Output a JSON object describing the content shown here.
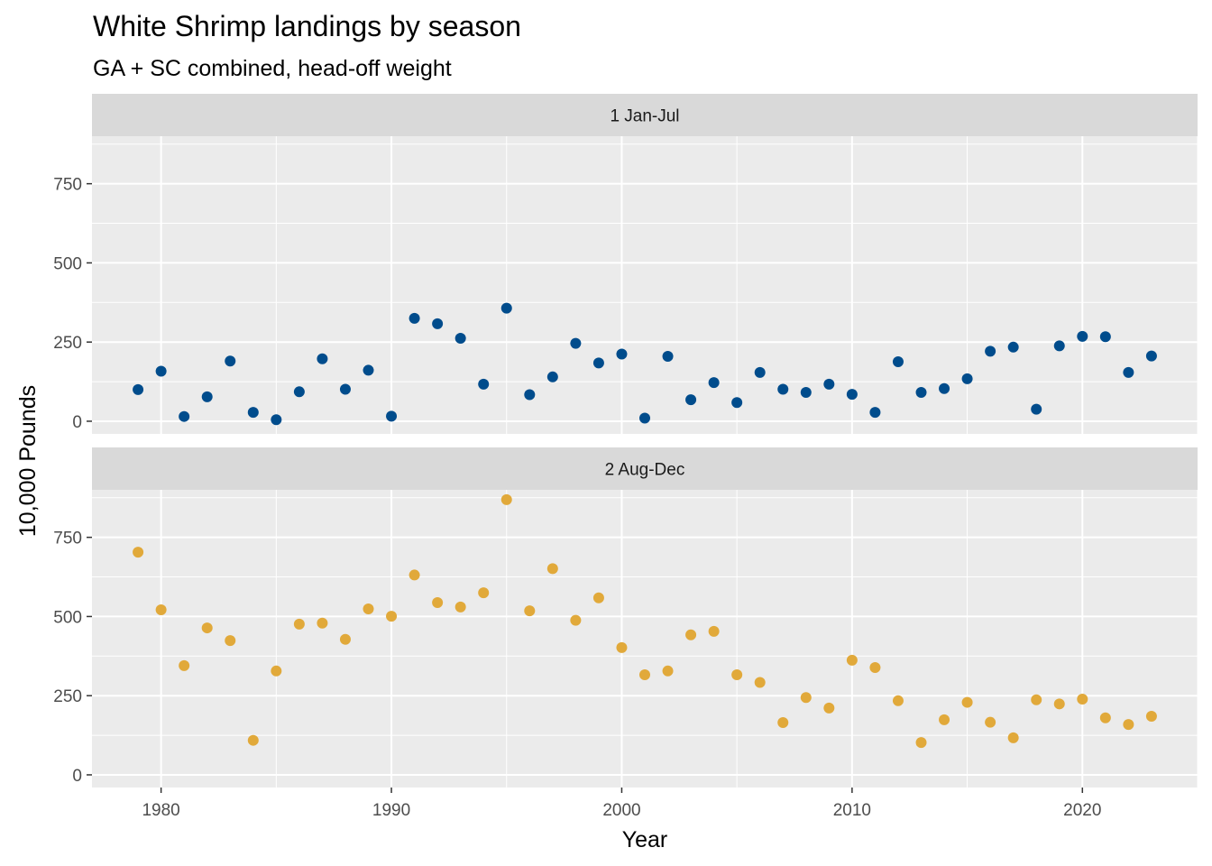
{
  "chart_data": {
    "type": "scatter",
    "title": "White Shrimp landings by season",
    "subtitle": "GA + SC combined, head-off weight",
    "xlabel": "Year",
    "ylabel": "10,000 Pounds",
    "xlim": [
      1977,
      2025
    ],
    "ylim": [
      -40,
      900
    ],
    "x_ticks": [
      1980,
      1990,
      2000,
      2010,
      2020
    ],
    "y_ticks": [
      0,
      250,
      500,
      750
    ],
    "grid": true,
    "legend": "none",
    "facets": [
      {
        "name": "1 Jan-Jul",
        "color": "#004c8c",
        "points": [
          {
            "x": 1979,
            "y": 100
          },
          {
            "x": 1980,
            "y": 158
          },
          {
            "x": 1981,
            "y": 15
          },
          {
            "x": 1982,
            "y": 77
          },
          {
            "x": 1983,
            "y": 190
          },
          {
            "x": 1984,
            "y": 28
          },
          {
            "x": 1985,
            "y": 5
          },
          {
            "x": 1986,
            "y": 93
          },
          {
            "x": 1987,
            "y": 197
          },
          {
            "x": 1988,
            "y": 101
          },
          {
            "x": 1989,
            "y": 161
          },
          {
            "x": 1990,
            "y": 16
          },
          {
            "x": 1991,
            "y": 325
          },
          {
            "x": 1992,
            "y": 308
          },
          {
            "x": 1993,
            "y": 262
          },
          {
            "x": 1994,
            "y": 117
          },
          {
            "x": 1995,
            "y": 357
          },
          {
            "x": 1996,
            "y": 84
          },
          {
            "x": 1997,
            "y": 140
          },
          {
            "x": 1998,
            "y": 246
          },
          {
            "x": 1999,
            "y": 184
          },
          {
            "x": 2000,
            "y": 212
          },
          {
            "x": 2001,
            "y": 10
          },
          {
            "x": 2002,
            "y": 205
          },
          {
            "x": 2003,
            "y": 68
          },
          {
            "x": 2004,
            "y": 122
          },
          {
            "x": 2005,
            "y": 59
          },
          {
            "x": 2006,
            "y": 154
          },
          {
            "x": 2007,
            "y": 101
          },
          {
            "x": 2008,
            "y": 91
          },
          {
            "x": 2009,
            "y": 117
          },
          {
            "x": 2010,
            "y": 85
          },
          {
            "x": 2011,
            "y": 28
          },
          {
            "x": 2012,
            "y": 188
          },
          {
            "x": 2013,
            "y": 91
          },
          {
            "x": 2014,
            "y": 103
          },
          {
            "x": 2015,
            "y": 134
          },
          {
            "x": 2016,
            "y": 221
          },
          {
            "x": 2017,
            "y": 234
          },
          {
            "x": 2018,
            "y": 38
          },
          {
            "x": 2019,
            "y": 238
          },
          {
            "x": 2020,
            "y": 268
          },
          {
            "x": 2021,
            "y": 267
          },
          {
            "x": 2022,
            "y": 154
          },
          {
            "x": 2023,
            "y": 206
          }
        ]
      },
      {
        "name": "2 Aug-Dec",
        "color": "#e1a93a",
        "points": [
          {
            "x": 1979,
            "y": 703
          },
          {
            "x": 1980,
            "y": 521
          },
          {
            "x": 1981,
            "y": 345
          },
          {
            "x": 1982,
            "y": 464
          },
          {
            "x": 1983,
            "y": 424
          },
          {
            "x": 1984,
            "y": 109
          },
          {
            "x": 1985,
            "y": 328
          },
          {
            "x": 1986,
            "y": 476
          },
          {
            "x": 1987,
            "y": 479
          },
          {
            "x": 1988,
            "y": 428
          },
          {
            "x": 1989,
            "y": 524
          },
          {
            "x": 1990,
            "y": 501
          },
          {
            "x": 1991,
            "y": 631
          },
          {
            "x": 1992,
            "y": 544
          },
          {
            "x": 1993,
            "y": 530
          },
          {
            "x": 1994,
            "y": 575
          },
          {
            "x": 1995,
            "y": 869
          },
          {
            "x": 1996,
            "y": 518
          },
          {
            "x": 1997,
            "y": 651
          },
          {
            "x": 1998,
            "y": 488
          },
          {
            "x": 1999,
            "y": 559
          },
          {
            "x": 2000,
            "y": 402
          },
          {
            "x": 2001,
            "y": 316
          },
          {
            "x": 2002,
            "y": 328
          },
          {
            "x": 2003,
            "y": 442
          },
          {
            "x": 2004,
            "y": 453
          },
          {
            "x": 2005,
            "y": 316
          },
          {
            "x": 2006,
            "y": 292
          },
          {
            "x": 2007,
            "y": 165
          },
          {
            "x": 2008,
            "y": 244
          },
          {
            "x": 2009,
            "y": 211
          },
          {
            "x": 2010,
            "y": 362
          },
          {
            "x": 2011,
            "y": 339
          },
          {
            "x": 2012,
            "y": 234
          },
          {
            "x": 2013,
            "y": 102
          },
          {
            "x": 2014,
            "y": 174
          },
          {
            "x": 2015,
            "y": 229
          },
          {
            "x": 2016,
            "y": 166
          },
          {
            "x": 2017,
            "y": 117
          },
          {
            "x": 2018,
            "y": 237
          },
          {
            "x": 2019,
            "y": 224
          },
          {
            "x": 2020,
            "y": 239
          },
          {
            "x": 2021,
            "y": 180
          },
          {
            "x": 2022,
            "y": 159
          },
          {
            "x": 2023,
            "y": 185
          }
        ]
      }
    ]
  }
}
